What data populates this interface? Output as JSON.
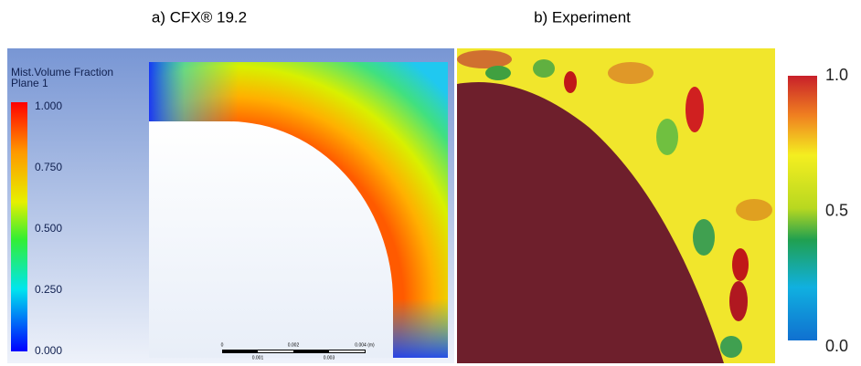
{
  "panels": [
    {
      "title": "a) CFX® 19.2",
      "legend": {
        "title": "Mist.Volume Fraction",
        "subtitle": "Plane 1",
        "ticks": [
          "1.000",
          "0.750",
          "0.500",
          "0.250",
          "0.000"
        ]
      },
      "scale_bar": {
        "labels": [
          "0",
          "0.002",
          "0.004 (m)"
        ],
        "sub_labels": [
          "0.001",
          "0.003"
        ]
      }
    },
    {
      "title": "b) Experiment",
      "legend": {
        "ticks": [
          "1.0",
          "0.5",
          "0.0"
        ]
      }
    }
  ]
}
